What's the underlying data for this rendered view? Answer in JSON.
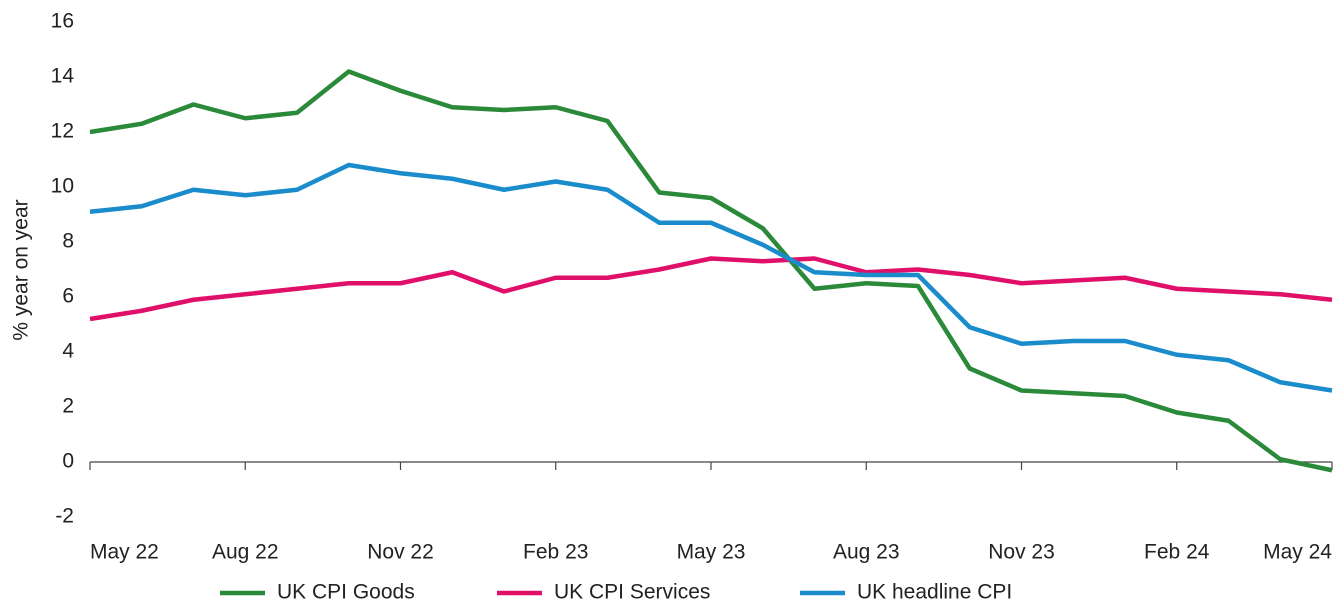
{
  "chart_data": {
    "type": "line",
    "y_label": "% year on year",
    "categories": [
      "May 22",
      null,
      null,
      "Aug 22",
      null,
      null,
      "Nov 22",
      null,
      null,
      "Feb 23",
      null,
      null,
      "May 23",
      null,
      null,
      "Aug 23",
      null,
      null,
      "Nov 23",
      null,
      null,
      "Feb 24",
      null,
      null,
      "May 24"
    ],
    "series": [
      {
        "name": "UK CPI Goods",
        "color": "#2a8a3a",
        "values": [
          12.0,
          12.3,
          13.0,
          12.5,
          12.7,
          14.2,
          13.5,
          12.9,
          12.8,
          12.9,
          12.4,
          9.8,
          9.6,
          8.5,
          6.3,
          6.5,
          6.4,
          3.4,
          2.6,
          2.5,
          2.4,
          1.8,
          1.5,
          0.1,
          -0.3
        ]
      },
      {
        "name": "UK CPI Services",
        "color": "#e0106a",
        "values": [
          5.2,
          5.5,
          5.9,
          6.1,
          6.3,
          6.5,
          6.5,
          6.9,
          6.2,
          6.7,
          6.7,
          7.0,
          7.4,
          7.3,
          7.4,
          6.9,
          7.0,
          6.8,
          6.5,
          6.6,
          6.7,
          6.3,
          6.2,
          6.1,
          5.9
        ]
      },
      {
        "name": "UK headline CPI",
        "color": "#1a8ccc",
        "values": [
          9.1,
          9.3,
          9.9,
          9.7,
          9.9,
          10.8,
          10.5,
          10.3,
          9.9,
          10.2,
          9.9,
          8.7,
          8.7,
          7.9,
          6.9,
          6.8,
          6.8,
          4.9,
          4.3,
          4.4,
          4.4,
          3.9,
          3.7,
          2.9,
          2.6
        ]
      }
    ],
    "ylim": [
      -2,
      16
    ],
    "yticks": [
      -2,
      0,
      2,
      4,
      6,
      8,
      10,
      12,
      14,
      16
    ],
    "grid": false
  }
}
